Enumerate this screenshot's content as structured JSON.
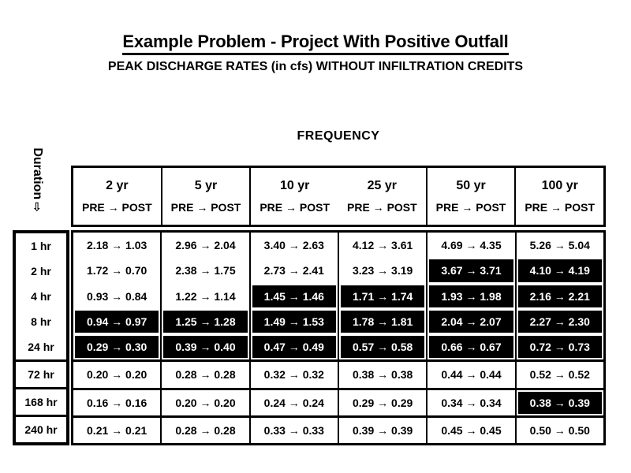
{
  "slide": {
    "title": "Example Problem - Project With Positive Outfall",
    "subtitle": "PEAK DISCHARGE RATES (in cfs) WITHOUT INFILTRATION CREDITS",
    "frequency_label": "FREQUENCY",
    "duration_label": "Duration",
    "duration_arrow": "⇨"
  },
  "colors": {
    "text": "#000000",
    "background": "#ffffff",
    "highlight_bg": "#000000",
    "highlight_text": "#ffffff"
  },
  "table": {
    "columns": [
      {
        "label": "2 yr",
        "sub": "PRE → POST"
      },
      {
        "label": "5 yr",
        "sub": "PRE → POST"
      },
      {
        "label": "10 yr",
        "sub": "PRE → POST"
      },
      {
        "label": "25 yr",
        "sub": "PRE → POST"
      },
      {
        "label": "50 yr",
        "sub": "PRE → POST"
      },
      {
        "label": "100 yr",
        "sub": "PRE → POST"
      }
    ],
    "rows": [
      {
        "label": "1 hr",
        "cells": [
          {
            "text": "2.18 → 1.03",
            "highlight": false
          },
          {
            "text": "2.96 → 2.04",
            "highlight": false
          },
          {
            "text": "3.40 → 2.63",
            "highlight": false
          },
          {
            "text": "4.12 → 3.61",
            "highlight": false
          },
          {
            "text": "4.69 → 4.35",
            "highlight": false
          },
          {
            "text": "5.26 → 5.04",
            "highlight": false
          }
        ]
      },
      {
        "label": "2 hr",
        "cells": [
          {
            "text": "1.72 → 0.70",
            "highlight": false
          },
          {
            "text": "2.38 → 1.75",
            "highlight": false
          },
          {
            "text": "2.73 → 2.41",
            "highlight": false
          },
          {
            "text": "3.23 → 3.19",
            "highlight": false
          },
          {
            "text": "3.67 → 3.71",
            "highlight": true
          },
          {
            "text": "4.10 → 4.19",
            "highlight": true
          }
        ]
      },
      {
        "label": "4 hr",
        "cells": [
          {
            "text": "0.93 → 0.84",
            "highlight": false
          },
          {
            "text": "1.22 → 1.14",
            "highlight": false
          },
          {
            "text": "1.45 → 1.46",
            "highlight": true
          },
          {
            "text": "1.71 → 1.74",
            "highlight": true
          },
          {
            "text": "1.93 → 1.98",
            "highlight": true
          },
          {
            "text": "2.16 → 2.21",
            "highlight": true
          }
        ]
      },
      {
        "label": "8 hr",
        "cells": [
          {
            "text": "0.94 → 0.97",
            "highlight": true
          },
          {
            "text": "1.25 → 1.28",
            "highlight": true
          },
          {
            "text": "1.49 → 1.53",
            "highlight": true
          },
          {
            "text": "1.78 → 1.81",
            "highlight": true
          },
          {
            "text": "2.04 → 2.07",
            "highlight": true
          },
          {
            "text": "2.27 → 2.30",
            "highlight": true
          }
        ]
      },
      {
        "label": "24 hr",
        "cells": [
          {
            "text": "0.29 → 0.30",
            "highlight": true
          },
          {
            "text": "0.39 → 0.40",
            "highlight": true
          },
          {
            "text": "0.47 → 0.49",
            "highlight": true
          },
          {
            "text": "0.57 → 0.58",
            "highlight": true
          },
          {
            "text": "0.66 → 0.67",
            "highlight": true
          },
          {
            "text": "0.72 → 0.73",
            "highlight": true
          }
        ]
      },
      {
        "label": "72 hr",
        "cells": [
          {
            "text": "0.20 → 0.20",
            "highlight": false
          },
          {
            "text": "0.28 → 0.28",
            "highlight": false
          },
          {
            "text": "0.32 → 0.32",
            "highlight": false
          },
          {
            "text": "0.38 → 0.38",
            "highlight": false
          },
          {
            "text": "0.44 → 0.44",
            "highlight": false
          },
          {
            "text": "0.52 → 0.52",
            "highlight": false
          }
        ]
      },
      {
        "label": "168 hr",
        "cells": [
          {
            "text": "0.16 → 0.16",
            "highlight": false
          },
          {
            "text": "0.20 → 0.20",
            "highlight": false
          },
          {
            "text": "0.24 → 0.24",
            "highlight": false
          },
          {
            "text": "0.29 → 0.29",
            "highlight": false
          },
          {
            "text": "0.34 → 0.34",
            "highlight": false
          },
          {
            "text": "0.38 → 0.39",
            "highlight": true
          }
        ]
      },
      {
        "label": "240 hr",
        "cells": [
          {
            "text": "0.21 → 0.21",
            "highlight": false
          },
          {
            "text": "0.28 → 0.28",
            "highlight": false
          },
          {
            "text": "0.33 → 0.33",
            "highlight": false
          },
          {
            "text": "0.39 → 0.39",
            "highlight": false
          },
          {
            "text": "0.45 → 0.45",
            "highlight": false
          },
          {
            "text": "0.50 → 0.50",
            "highlight": false
          }
        ]
      }
    ]
  }
}
